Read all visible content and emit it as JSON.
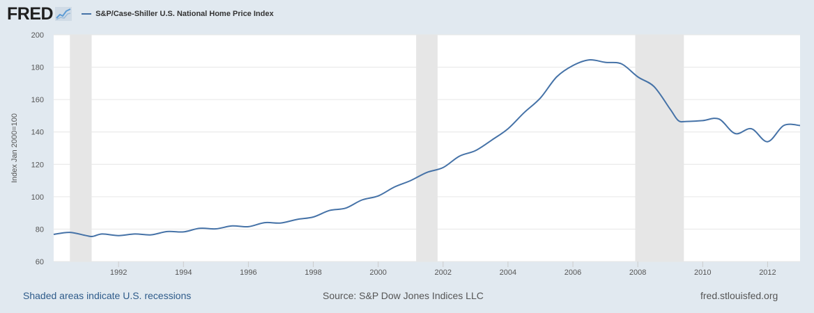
{
  "logo": {
    "text": "FRED"
  },
  "legend": {
    "label": "S&P/Case-Shiller U.S. National Home Price Index"
  },
  "footer": {
    "recessions_link": "Shaded areas indicate U.S. recessions",
    "source": "Source: S&P Dow Jones Indices LLC",
    "site": "fred.stlouisfed.org"
  },
  "colors": {
    "series": "#4572a7",
    "recession": "#e6e6e6",
    "background": "#e1e9f0",
    "plot": "#ffffff",
    "grid": "#e6e6e6"
  },
  "chart_data": {
    "type": "line",
    "title": "",
    "xlabel": "",
    "ylabel": "Index Jan 2000=100",
    "xlim": [
      1990.0,
      2013.0
    ],
    "ylim": [
      60,
      200
    ],
    "yticks": [
      60,
      80,
      100,
      120,
      140,
      160,
      180,
      200
    ],
    "xticks": [
      "1992",
      "1994",
      "1996",
      "1998",
      "2000",
      "2002",
      "2004",
      "2006",
      "2008",
      "2010",
      "2012"
    ],
    "grid": true,
    "legend_position": "top-left",
    "recessions": [
      [
        1990.5,
        1991.17
      ],
      [
        2001.17,
        2001.83
      ],
      [
        2007.92,
        2009.42
      ]
    ],
    "series": [
      {
        "name": "S&P/Case-Shiller U.S. National Home Price Index",
        "x": [
          1990.0,
          1990.5,
          1991.0,
          1991.2,
          1991.5,
          1992.0,
          1992.5,
          1993.0,
          1993.5,
          1994.0,
          1994.5,
          1995.0,
          1995.5,
          1996.0,
          1996.5,
          1997.0,
          1997.5,
          1998.0,
          1998.5,
          1999.0,
          1999.5,
          2000.0,
          2000.5,
          2001.0,
          2001.5,
          2002.0,
          2002.5,
          2003.0,
          2003.5,
          2004.0,
          2004.5,
          2005.0,
          2005.5,
          2006.0,
          2006.5,
          2007.0,
          2007.5,
          2008.0,
          2008.5,
          2009.0,
          2009.25,
          2009.5,
          2010.0,
          2010.5,
          2011.0,
          2011.5,
          2012.0,
          2012.5,
          2013.0
        ],
        "values": [
          76.8,
          78.0,
          76.0,
          75.5,
          77.0,
          76.0,
          77.0,
          76.5,
          78.5,
          78.3,
          80.5,
          80.2,
          82.0,
          81.5,
          84.0,
          83.8,
          86.0,
          87.5,
          91.5,
          93.0,
          98.0,
          100.5,
          106.0,
          110.0,
          115.0,
          118.0,
          125.0,
          128.5,
          135.0,
          142.0,
          152.0,
          161.0,
          174.0,
          181.0,
          184.5,
          183.0,
          182.0,
          174.0,
          168.0,
          154.0,
          147.0,
          146.5,
          147.0,
          148.0,
          139.0,
          142.0,
          134.0,
          144.0,
          144.0
        ]
      }
    ]
  }
}
